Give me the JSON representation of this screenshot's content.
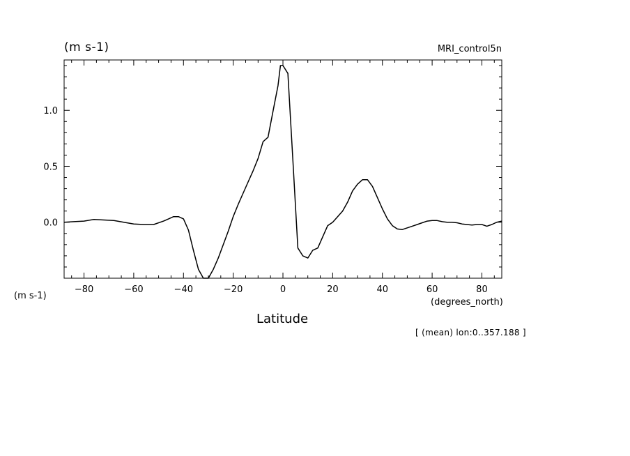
{
  "chart_data": {
    "type": "line",
    "title": "",
    "dataset": "MRI_control5n",
    "ylabel": "(m s-1)",
    "ylabel_secondary": "(m s-1)",
    "xlabel": "Latitude",
    "xunits": "(degrees_north)",
    "subset_note": "[ (mean) lon:0..357.188 ]",
    "xlim": [
      -88,
      88
    ],
    "ylim": [
      -0.5,
      1.45
    ],
    "xticks": [
      -80,
      -60,
      -40,
      -20,
      0,
      20,
      40,
      60,
      80
    ],
    "xtick_labels": [
      "−80",
      "−60",
      "−40",
      "−20",
      "0",
      "20",
      "40",
      "60",
      "80"
    ],
    "yticks": [
      0.0,
      0.5,
      1.0
    ],
    "ytick_labels": [
      "0.0",
      "0.5",
      "1.0"
    ],
    "grid": false,
    "line_color": "#000000",
    "series": [
      {
        "x": [
          -88,
          -84,
          -80,
          -76,
          -72,
          -68,
          -64,
          -60,
          -56,
          -52,
          -48,
          -46,
          -44,
          -42,
          -40,
          -38,
          -36,
          -34,
          -32,
          -30,
          -28,
          -26,
          -24,
          -22,
          -20,
          -18,
          -16,
          -14,
          -12,
          -10,
          -8,
          -6,
          -4,
          -2,
          -1,
          0,
          2,
          4,
          6,
          8,
          10,
          12,
          14,
          16,
          18,
          20,
          22,
          24,
          26,
          28,
          30,
          32,
          34,
          36,
          38,
          40,
          42,
          44,
          46,
          48,
          50,
          52,
          54,
          56,
          58,
          60,
          62,
          64,
          66,
          68,
          70,
          72,
          74,
          76,
          78,
          80,
          82,
          84,
          86,
          88
        ],
        "y": [
          0.0,
          0.005,
          0.01,
          0.025,
          0.02,
          0.015,
          0.0,
          -0.015,
          -0.02,
          -0.02,
          0.01,
          0.03,
          0.05,
          0.05,
          0.03,
          -0.07,
          -0.25,
          -0.42,
          -0.5,
          -0.5,
          -0.42,
          -0.32,
          -0.2,
          -0.08,
          0.05,
          0.16,
          0.26,
          0.36,
          0.46,
          0.57,
          0.72,
          0.76,
          0.99,
          1.22,
          1.4,
          1.4,
          1.33,
          0.55,
          -0.23,
          -0.3,
          -0.32,
          -0.25,
          -0.23,
          -0.13,
          -0.03,
          0.0,
          0.05,
          0.1,
          0.18,
          0.28,
          0.34,
          0.38,
          0.38,
          0.32,
          0.22,
          0.12,
          0.03,
          -0.03,
          -0.06,
          -0.065,
          -0.05,
          -0.035,
          -0.02,
          -0.005,
          0.01,
          0.015,
          0.015,
          0.005,
          0.0,
          0.0,
          -0.005,
          -0.015,
          -0.02,
          -0.025,
          -0.02,
          -0.02,
          -0.035,
          -0.02,
          0.0,
          0.01
        ]
      }
    ]
  }
}
